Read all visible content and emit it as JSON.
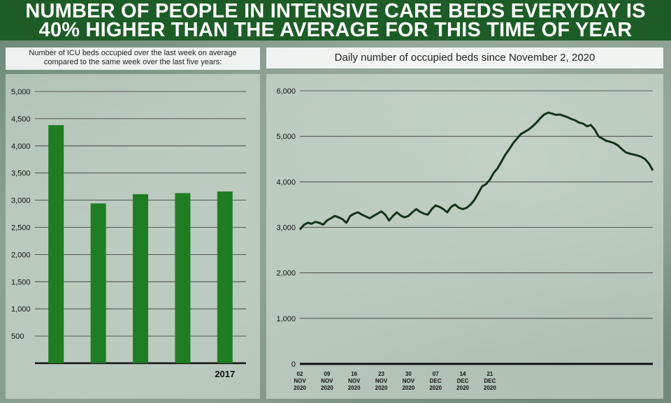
{
  "header": {
    "title_line1": "NUMBER OF PEOPLE IN INTENSIVE CARE BEDS EVERYDAY IS",
    "title_line2": "40% HIGHER THAN THE AVERAGE FOR THIS TIME OF YEAR"
  },
  "left_chart": {
    "subtitle_line1": "Number of ICU beds occupied over the last week on average",
    "subtitle_line2": "compared to the same week over the last five years:"
  },
  "right_chart": {
    "subtitle": "Daily number of occupied beds since November 2, 2020"
  },
  "colors": {
    "header": "#1d5c27",
    "bar": "#1e7d22",
    "line": "#12331a"
  },
  "chart_data": [
    {
      "type": "bar",
      "title": "Number of ICU beds occupied over the last week on average compared to the same week over the last five years:",
      "categories": [
        "",
        "",
        "",
        "",
        "2017"
      ],
      "values": [
        4380,
        2940,
        3110,
        3130,
        3160
      ],
      "ylim": [
        0,
        5000
      ],
      "yticks": [
        "500",
        "1,000",
        "1,500",
        "2,000",
        "2,500",
        "3,000",
        "3,500",
        "4,000",
        "4,500",
        "5,000"
      ],
      "grid": true
    },
    {
      "type": "line",
      "title": "Daily number of occupied beds since November 2, 2020",
      "x_labels": [
        {
          "l1": "02",
          "l2": "NOV",
          "l3": "2020"
        },
        {
          "l1": "09",
          "l2": "NOV",
          "l3": "2020"
        },
        {
          "l1": "16",
          "l2": "NOV",
          "l3": "2020"
        },
        {
          "l1": "23",
          "l2": "NOV",
          "l3": "2020"
        },
        {
          "l1": "30",
          "l2": "NOV",
          "l3": "2020"
        },
        {
          "l1": "07",
          "l2": "DEC",
          "l3": "2020"
        },
        {
          "l1": "14",
          "l2": "DEC",
          "l3": "2020"
        },
        {
          "l1": "21",
          "l2": "DEC",
          "l3": "2020"
        }
      ],
      "values": [
        2950,
        3050,
        3100,
        3080,
        3120,
        3100,
        3060,
        3150,
        3200,
        3250,
        3220,
        3180,
        3100,
        3250,
        3300,
        3330,
        3280,
        3240,
        3200,
        3250,
        3300,
        3350,
        3280,
        3150,
        3250,
        3330,
        3260,
        3220,
        3250,
        3330,
        3400,
        3340,
        3300,
        3280,
        3400,
        3480,
        3450,
        3400,
        3330,
        3450,
        3500,
        3430,
        3400,
        3430,
        3500,
        3600,
        3750,
        3900,
        3950,
        4050,
        4200,
        4300,
        4450,
        4600,
        4720,
        4850,
        4950,
        5050,
        5100,
        5150,
        5220,
        5300,
        5400,
        5480,
        5520,
        5500,
        5470,
        5480,
        5450,
        5420,
        5380,
        5350,
        5300,
        5280,
        5220,
        5250,
        5150,
        5000,
        4950,
        4900,
        4880,
        4850,
        4800,
        4720,
        4650,
        4620,
        4600,
        4580,
        4550,
        4500,
        4400,
        4250
      ],
      "ylim": [
        0,
        6000
      ],
      "yticks": [
        "0",
        "1,000",
        "2,000",
        "3,000",
        "4,000",
        "5,000",
        "6,000"
      ],
      "grid": true
    }
  ]
}
